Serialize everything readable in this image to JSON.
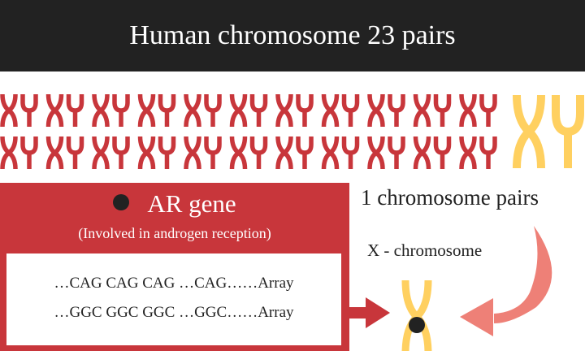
{
  "title": "Human chromosome 23 pairs",
  "gene": {
    "name": "AR gene",
    "description": "(Involved in androgen reception)",
    "sequences": [
      "…CAG CAG CAG …CAG……Array",
      "…GGC GGC GGC …GGC……Array"
    ]
  },
  "labels": {
    "pairs": "1 chromosome pairs",
    "x_chromosome": "X - chromosome"
  },
  "colors": {
    "autosome": "#c8363b",
    "sex_chromosome": "#ffd060",
    "curved_arrow": "#ee8077",
    "banner": "#222222"
  }
}
